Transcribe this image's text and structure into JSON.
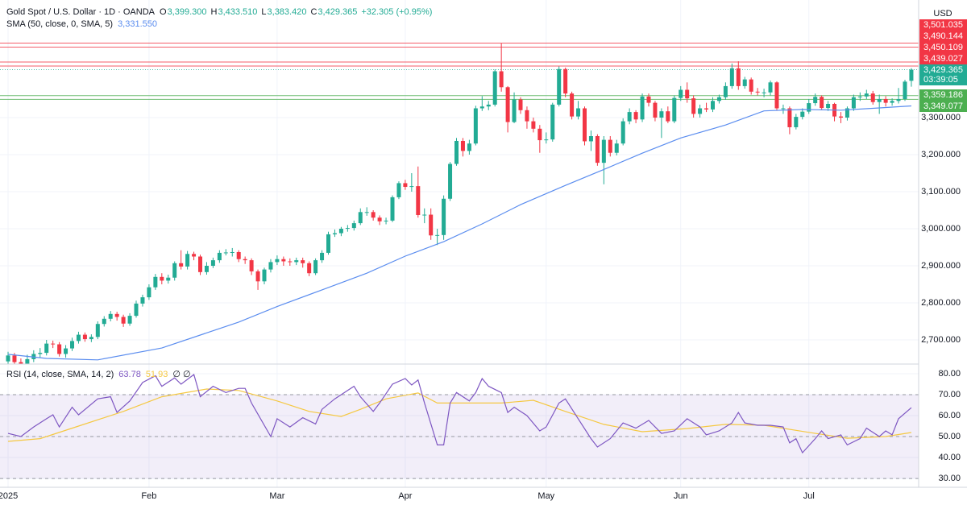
{
  "chart_data": [
    {
      "type": "candlestick",
      "title": "Gold Spot / U.S. Dollar · 1D · OANDA",
      "ohlc_labels": [
        {
          "label": "O",
          "value": "3,399.300"
        },
        {
          "label": "H",
          "value": "3,433.510"
        },
        {
          "label": "L",
          "value": "3,383.420"
        },
        {
          "label": "C",
          "value": "3,429.365"
        }
      ],
      "change": "+32.305 (+0.95%)",
      "currency": "USD",
      "countdown": "03:39:05",
      "up_color": "#22ab94",
      "down_color": "#f23645",
      "xlim": [
        -1.26,
        142.14
      ],
      "ylim": [
        2634.8,
        3617.4
      ],
      "yticks": [
        {
          "value": 2700,
          "label": "2,700.000"
        },
        {
          "value": 2800,
          "label": "2,800.000"
        },
        {
          "value": 2900,
          "label": "2,900.000"
        },
        {
          "value": 3000,
          "label": "3,000.000"
        },
        {
          "value": 3100,
          "label": "3,100.000"
        },
        {
          "value": 3200,
          "label": "3,200.000"
        },
        {
          "value": 3300,
          "label": "3,300.000"
        }
      ],
      "xticks": [
        {
          "value": 0,
          "label": "2025"
        },
        {
          "value": 22,
          "label": "Feb"
        },
        {
          "value": 42,
          "label": "Mar"
        },
        {
          "value": 62,
          "label": "Apr"
        },
        {
          "value": 84,
          "label": "May"
        },
        {
          "value": 105,
          "label": "Jun"
        },
        {
          "value": 125,
          "label": "Jul"
        }
      ],
      "grid": true,
      "open": [
        2642,
        2658,
        2640,
        2636,
        2648,
        2662,
        2665,
        2690,
        2688,
        2662,
        2677,
        2697,
        2714,
        2702,
        2708,
        2743,
        2757,
        2770,
        2762,
        2744,
        2765,
        2798,
        2815,
        2842,
        2870,
        2860,
        2868,
        2907,
        2898,
        2932,
        2925,
        2883,
        2900,
        2915,
        2935,
        2936,
        2937,
        2918,
        2915,
        2885,
        2858,
        2890,
        2910,
        2918,
        2912,
        2910,
        2915,
        2907,
        2880,
        2915,
        2935,
        2985,
        2988,
        3000,
        3002,
        3015,
        3045,
        3045,
        3030,
        3020,
        3022,
        3085,
        3123,
        3113,
        3115,
        3037,
        3038,
        2982,
        2983,
        3081,
        3175,
        3237,
        3210,
        3230,
        3325,
        3330,
        3335,
        3425,
        3382,
        3288,
        3349,
        3320,
        3290,
        3270,
        3239,
        3241,
        3335,
        3431,
        3365,
        3303,
        3325,
        3236,
        3250,
        3178,
        3240,
        3205,
        3230,
        3290,
        3315,
        3295,
        3357,
        3340,
        3300,
        3317,
        3290,
        3353,
        3375,
        3352,
        3310,
        3325,
        3322,
        3345,
        3355,
        3385,
        3433,
        3385,
        3403,
        3370,
        3368,
        3368,
        3395,
        3325,
        3325,
        3274,
        3302,
        3316,
        3339,
        3356,
        3326,
        3337,
        3303,
        3300,
        3325,
        3355,
        3357,
        3365,
        3342,
        3350,
        3340,
        3345,
        3350,
        3399.3
      ],
      "high": [
        2668,
        2665,
        2650,
        2660,
        2672,
        2678,
        2700,
        2698,
        2694,
        2686,
        2706,
        2722,
        2720,
        2715,
        2750,
        2764,
        2778,
        2776,
        2768,
        2772,
        2806,
        2822,
        2850,
        2878,
        2880,
        2876,
        2912,
        2942,
        2940,
        2938,
        2930,
        2910,
        2922,
        2942,
        2945,
        2948,
        2942,
        2925,
        2920,
        2890,
        2895,
        2918,
        2928,
        2925,
        2920,
        2922,
        2922,
        2912,
        2920,
        2942,
        2992,
        2998,
        3005,
        3010,
        3022,
        3055,
        3058,
        3050,
        3036,
        3030,
        3090,
        3128,
        3132,
        3150,
        3168,
        3055,
        3055,
        3000,
        3090,
        3180,
        3245,
        3245,
        3240,
        3332,
        3358,
        3345,
        3430,
        3500,
        3385,
        3368,
        3355,
        3330,
        3300,
        3280,
        3260,
        3340,
        3438,
        3435,
        3370,
        3345,
        3330,
        3265,
        3255,
        3250,
        3250,
        3240,
        3298,
        3325,
        3320,
        3365,
        3365,
        3345,
        3325,
        3330,
        3360,
        3385,
        3395,
        3360,
        3335,
        3340,
        3355,
        3362,
        3395,
        3446,
        3452,
        3410,
        3408,
        3380,
        3378,
        3400,
        3398,
        3335,
        3330,
        3310,
        3325,
        3350,
        3365,
        3360,
        3345,
        3340,
        3315,
        3330,
        3362,
        3368,
        3375,
        3372,
        3362,
        3358,
        3352,
        3380,
        3402,
        3433.51
      ],
      "low": [
        2632,
        2630,
        2625,
        2628,
        2640,
        2652,
        2658,
        2678,
        2655,
        2652,
        2670,
        2690,
        2695,
        2694,
        2702,
        2736,
        2750,
        2752,
        2735,
        2738,
        2760,
        2790,
        2808,
        2835,
        2850,
        2852,
        2860,
        2890,
        2890,
        2915,
        2875,
        2876,
        2894,
        2908,
        2928,
        2925,
        2910,
        2905,
        2875,
        2835,
        2850,
        2882,
        2902,
        2900,
        2900,
        2902,
        2895,
        2872,
        2875,
        2908,
        2930,
        2978,
        2980,
        2992,
        2995,
        3010,
        3035,
        3022,
        3010,
        3012,
        3018,
        3080,
        3105,
        3100,
        3030,
        3015,
        2970,
        2956,
        2970,
        3075,
        3170,
        3195,
        3200,
        3225,
        3318,
        3320,
        3330,
        3370,
        3260,
        3285,
        3310,
        3270,
        3260,
        3205,
        3230,
        3235,
        3330,
        3355,
        3295,
        3295,
        3225,
        3210,
        3170,
        3120,
        3195,
        3198,
        3225,
        3282,
        3285,
        3288,
        3330,
        3290,
        3245,
        3285,
        3285,
        3345,
        3340,
        3300,
        3300,
        3315,
        3315,
        3338,
        3348,
        3378,
        3375,
        3378,
        3362,
        3360,
        3355,
        3360,
        3320,
        3310,
        3255,
        3268,
        3295,
        3310,
        3332,
        3320,
        3318,
        3290,
        3285,
        3292,
        3318,
        3345,
        3350,
        3335,
        3310,
        3330,
        3332,
        3338,
        3345,
        3383.42
      ],
      "close": [
        2658,
        2640,
        2636,
        2648,
        2662,
        2665,
        2690,
        2688,
        2662,
        2677,
        2697,
        2714,
        2702,
        2708,
        2743,
        2757,
        2770,
        2762,
        2744,
        2765,
        2798,
        2815,
        2842,
        2870,
        2860,
        2868,
        2907,
        2898,
        2932,
        2925,
        2883,
        2900,
        2915,
        2935,
        2936,
        2937,
        2918,
        2915,
        2885,
        2858,
        2890,
        2910,
        2918,
        2912,
        2910,
        2915,
        2907,
        2880,
        2915,
        2935,
        2985,
        2988,
        3000,
        3002,
        3015,
        3045,
        3045,
        3030,
        3020,
        3022,
        3085,
        3123,
        3113,
        3115,
        3037,
        3038,
        2982,
        2983,
        3081,
        3175,
        3237,
        3210,
        3230,
        3325,
        3330,
        3335,
        3425,
        3382,
        3288,
        3349,
        3320,
        3290,
        3270,
        3239,
        3241,
        3335,
        3431,
        3365,
        3303,
        3325,
        3236,
        3250,
        3178,
        3240,
        3205,
        3230,
        3290,
        3315,
        3295,
        3357,
        3340,
        3300,
        3317,
        3290,
        3353,
        3375,
        3352,
        3310,
        3325,
        3322,
        3345,
        3355,
        3385,
        3433,
        3385,
        3403,
        3370,
        3368,
        3368,
        3395,
        3325,
        3325,
        3274,
        3302,
        3316,
        3339,
        3356,
        3326,
        3337,
        3303,
        3300,
        3325,
        3355,
        3357,
        3365,
        3342,
        3350,
        3340,
        3345,
        3350,
        3397.06,
        3429.365
      ],
      "overlays": [
        {
          "name": "SMA (50, close, 0, SMA, 5)",
          "color": "#5b8def",
          "value_label": "3,331.550",
          "x": [
            0,
            6,
            14,
            24,
            36,
            42,
            49,
            56,
            62,
            68,
            74,
            80,
            87,
            93,
            99,
            105,
            112,
            118,
            124,
            130,
            136,
            141
          ],
          "values": [
            2661,
            2650,
            2646,
            2678,
            2748,
            2790,
            2835,
            2880,
            2926,
            2965,
            3013,
            3065,
            3117,
            3160,
            3204,
            3245,
            3280,
            3318,
            3322,
            3320,
            3326,
            3331.55
          ]
        }
      ],
      "levels": [
        {
          "value": 3501.035,
          "label": "3,501.035",
          "color": "#f23645",
          "line_style": "solid"
        },
        {
          "value": 3490.144,
          "label": "3,490.144",
          "color": "#f23645",
          "line_style": "solid"
        },
        {
          "value": 3450.109,
          "label": "3,450.109",
          "color": "#f23645",
          "line_style": "solid"
        },
        {
          "value": 3439.027,
          "label": "3,439.027",
          "color": "#f23645",
          "line_style": "solid"
        },
        {
          "value": 3429.365,
          "label": "3,429.365",
          "color": "#22ab94",
          "line_style": "dotted"
        },
        {
          "value": 3359.186,
          "label": "3,359.186",
          "color": "#4caf50",
          "line_style": "solid"
        },
        {
          "value": 3349.077,
          "label": "3,349.077",
          "color": "#4caf50",
          "line_style": "solid"
        }
      ]
    },
    {
      "type": "line",
      "title": "RSI (14, close, SMA, 14, 2)",
      "extra": "∅ ∅",
      "xlim": [
        -1.26,
        142.14
      ],
      "ylim": [
        25.8,
        84.6
      ],
      "yticks": [
        {
          "value": 30,
          "label": "30.00"
        },
        {
          "value": 40,
          "label": "40.00"
        },
        {
          "value": 50,
          "label": "50.00"
        },
        {
          "value": 60,
          "label": "60.00"
        },
        {
          "value": 70,
          "label": "70.00"
        },
        {
          "value": 80,
          "label": "80.00"
        }
      ],
      "hlines": [
        70,
        50,
        30
      ],
      "band_color": "#7e57c2",
      "series": [
        {
          "color": "#7e57c2",
          "value_label": "63.78",
          "x": [
            0,
            2,
            4,
            6,
            7,
            8,
            10,
            11,
            14,
            16,
            17,
            19,
            21,
            23,
            24,
            26,
            27,
            29,
            30,
            32,
            34,
            36,
            37,
            38,
            41,
            42,
            44,
            46,
            48,
            49,
            51,
            53,
            54,
            55,
            57,
            58,
            60,
            62,
            63,
            64,
            65,
            67,
            68,
            69,
            70,
            72,
            73,
            74,
            75,
            77,
            78,
            79,
            81,
            83,
            84,
            86,
            87,
            89,
            91,
            92,
            94,
            96,
            98,
            100,
            102,
            104,
            106,
            108,
            109,
            111,
            113,
            114,
            115,
            117,
            119,
            121,
            122,
            123,
            124,
            126,
            127,
            128,
            130,
            131,
            133,
            134,
            136,
            137,
            138,
            139,
            141
          ],
          "values": [
            51.5,
            50,
            54.6,
            58.5,
            60.4,
            54.6,
            64,
            60.4,
            68,
            69,
            61.5,
            67,
            75.8,
            79,
            74,
            78,
            75,
            79.6,
            69,
            74,
            71,
            73,
            73,
            66,
            50,
            58.5,
            54.6,
            59,
            56,
            63,
            68,
            72,
            74,
            69,
            62,
            66,
            75,
            77.7,
            74.6,
            77,
            66,
            46,
            46,
            66,
            71,
            67,
            71,
            77.7,
            74,
            71,
            61.5,
            64,
            60,
            52.7,
            54.6,
            66,
            68,
            58.5,
            49,
            45,
            49,
            56.5,
            54,
            57.7,
            51.5,
            52.7,
            58.5,
            54.6,
            50.8,
            52.7,
            56.5,
            61.5,
            56.5,
            55.4,
            55.4,
            54.6,
            47,
            49,
            42.3,
            49,
            52.7,
            49,
            50.8,
            46,
            49,
            54,
            50,
            52.7,
            50.8,
            58.5,
            63.78
          ]
        },
        {
          "color": "#f5c842",
          "value_label": "51.93",
          "x": [
            0,
            5,
            11,
            18,
            24,
            31,
            36,
            42,
            47,
            52,
            55,
            59,
            64,
            67,
            72,
            77,
            82,
            87,
            93,
            99,
            106,
            112,
            118,
            125,
            131,
            137,
            141
          ],
          "values": [
            47.7,
            49,
            55,
            62,
            69,
            72.7,
            72,
            67,
            62,
            59.6,
            63,
            68,
            70.8,
            66,
            66,
            66,
            67.3,
            62,
            55.8,
            52.3,
            53.8,
            55.8,
            55.4,
            52,
            49.2,
            50,
            51.93
          ]
        }
      ]
    }
  ]
}
